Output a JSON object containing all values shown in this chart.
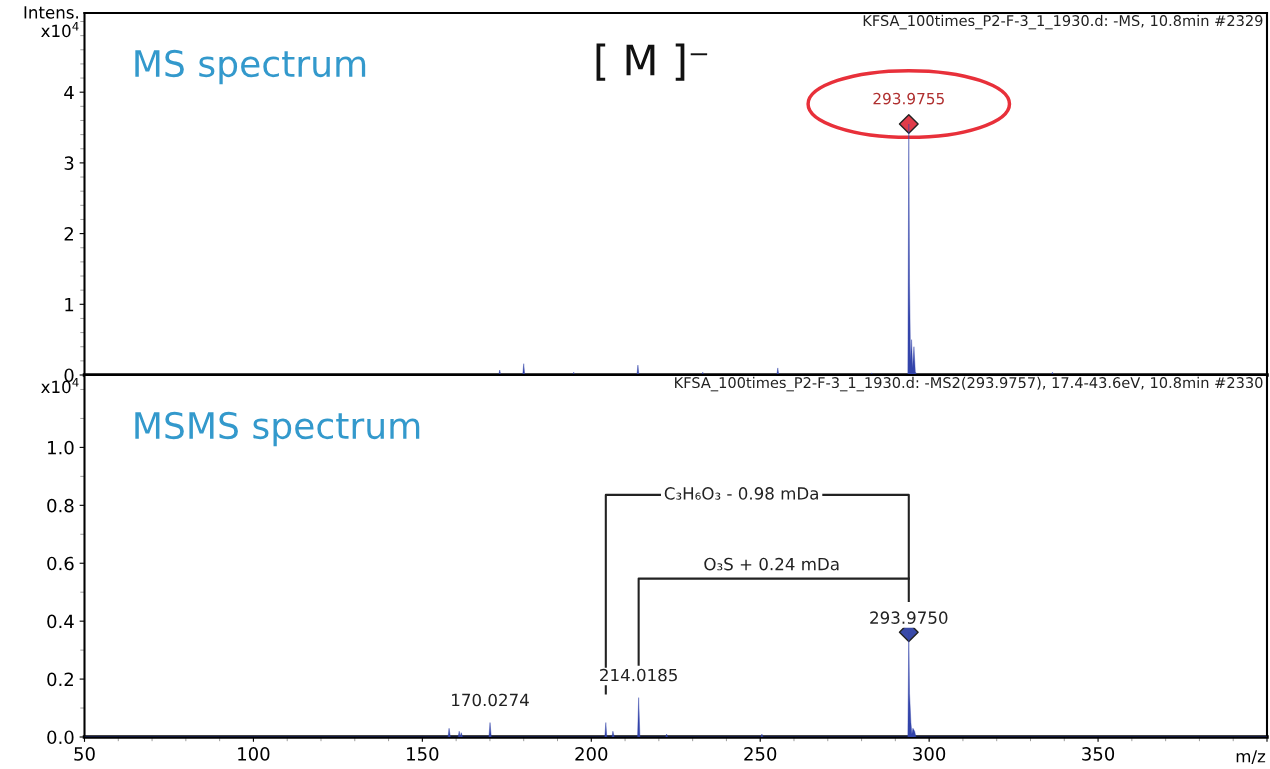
{
  "chart_data": [
    {
      "type": "area",
      "title": "MS spectrum",
      "subtitle": "KFSA_100times_P2-F-3_1_1930.d: -MS, 10.8min #2329",
      "ylabel": "Intens.\nx10$^{4}$",
      "annotations": [
        "[ M ]⁻",
        {
          "text": "293.9755",
          "x": 293.9755,
          "y": 3.55
        }
      ],
      "xlim": [
        50,
        400
      ],
      "xticks": [
        50,
        100,
        150,
        200,
        250,
        300,
        350,
        400
      ],
      "ylim": [
        0,
        5.12
      ],
      "yticks": [
        0,
        1,
        2,
        3,
        4
      ],
      "tick_labels": "y",
      "grid": false,
      "legend": false,
      "series": [
        {
          "color": "#3344aa",
          "x": [
            50,
            172.6,
            172.9,
            173.2,
            179.7,
            180.0,
            180.3,
            194.5,
            194.8,
            195.1,
            213.5,
            213.8,
            214.1,
            232.7,
            233.0,
            233.3,
            254.9,
            255.2,
            255.5,
            282.7,
            283.0,
            283.3,
            293.7,
            293.98,
            294.2,
            294.5,
            294.8,
            295.1,
            295.5,
            295.9,
            296.3,
            336.2,
            336.5,
            336.8,
            400
          ],
          "values": [
            0,
            0,
            0.07,
            0,
            0,
            0.16,
            0,
            0,
            0.04,
            0,
            0,
            0.14,
            0,
            0,
            0.04,
            0,
            0,
            0.1,
            0,
            0,
            0.03,
            0,
            0,
            3.55,
            1.3,
            0.2,
            0.5,
            0.1,
            0.4,
            0.05,
            0,
            0,
            0.04,
            0,
            0
          ]
        },
        {
          "type": "scatter",
          "marker": "diamond",
          "color": "#e03c4a",
          "x": [
            293.9755
          ],
          "values": [
            3.55
          ]
        }
      ]
    },
    {
      "type": "area",
      "title": "MSMS spectrum",
      "subtitle": "KFSA_100times_P2-F-3_1_1930.d: -MS2(293.9757), 17.4-43.6eV, 10.8min #2330",
      "xlabel": "m/z",
      "ylabel": "x10$^{4}$",
      "annotations": [
        {
          "text": "293.9750",
          "x": 293.975,
          "y": 0.362
        },
        {
          "text": "C₃H₆O₃ - 0.98 mDa",
          "x": 244.5,
          "y": 0.836
        },
        {
          "text": "O₃S + 0.24 mDa",
          "x": 253.4,
          "y": 0.547
        },
        {
          "text": "214.0185",
          "x": 214.0185,
          "y": 0.136
        },
        {
          "text": "170.0274",
          "x": 170.0274,
          "y": 0.05
        }
      ],
      "xlim": [
        50,
        400
      ],
      "xticks": [
        50,
        100,
        150,
        200,
        250,
        300,
        350,
        {
          "value": 400,
          "label": null
        }
      ],
      "ylim": [
        0,
        1.25
      ],
      "yticks": [
        {
          "value": 0,
          "label": "0.0"
        },
        {
          "value": 0.2,
          "label": "0.2"
        },
        {
          "value": 0.4,
          "label": "0.4"
        },
        {
          "value": 0.6,
          "label": "0.6"
        },
        {
          "value": 0.8,
          "label": "0.8"
        },
        {
          "value": 1.0,
          "label": "1.0"
        }
      ],
      "grid": false,
      "legend": false,
      "series": [
        {
          "color": "#3344aa",
          "x": [
            50,
            157.6,
            157.9,
            158.3,
            160.6,
            160.9,
            161.2,
            161.5,
            161.9,
            169.7,
            170.03,
            170.4,
            204.0,
            204.3,
            204.6,
            206.1,
            206.4,
            206.8,
            213.7,
            214.02,
            214.4,
            222.0,
            222.3,
            222.6,
            250.2,
            250.5,
            250.8,
            293.7,
            293.975,
            294.2,
            294.6,
            294.9,
            295.2,
            295.7,
            296.1,
            400
          ],
          "values": [
            0,
            0,
            0.03,
            0,
            0,
            0.02,
            0,
            0.015,
            0,
            0,
            0.05,
            0,
            0,
            0.05,
            0,
            0,
            0.02,
            0,
            0,
            0.136,
            0,
            0,
            0.01,
            0,
            0,
            0.01,
            0,
            0,
            0.362,
            0.15,
            0.05,
            0.01,
            0.03,
            0.02,
            0,
            0
          ]
        },
        {
          "type": "line",
          "color": "#222222",
          "x": [
            204.3,
            204.3,
            293.975,
            293.975
          ],
          "values": [
            0.15,
            0.836,
            0.836,
            0.47
          ]
        },
        {
          "type": "line",
          "color": "#222222",
          "x": [
            214.0185,
            214.0185,
            293.975
          ],
          "values": [
            0.25,
            0.547,
            0.547
          ]
        },
        {
          "type": "scatter",
          "marker": "diamond",
          "color": "#3a4aa8",
          "x": [
            293.975
          ],
          "values": [
            0.362
          ]
        }
      ]
    }
  ]
}
